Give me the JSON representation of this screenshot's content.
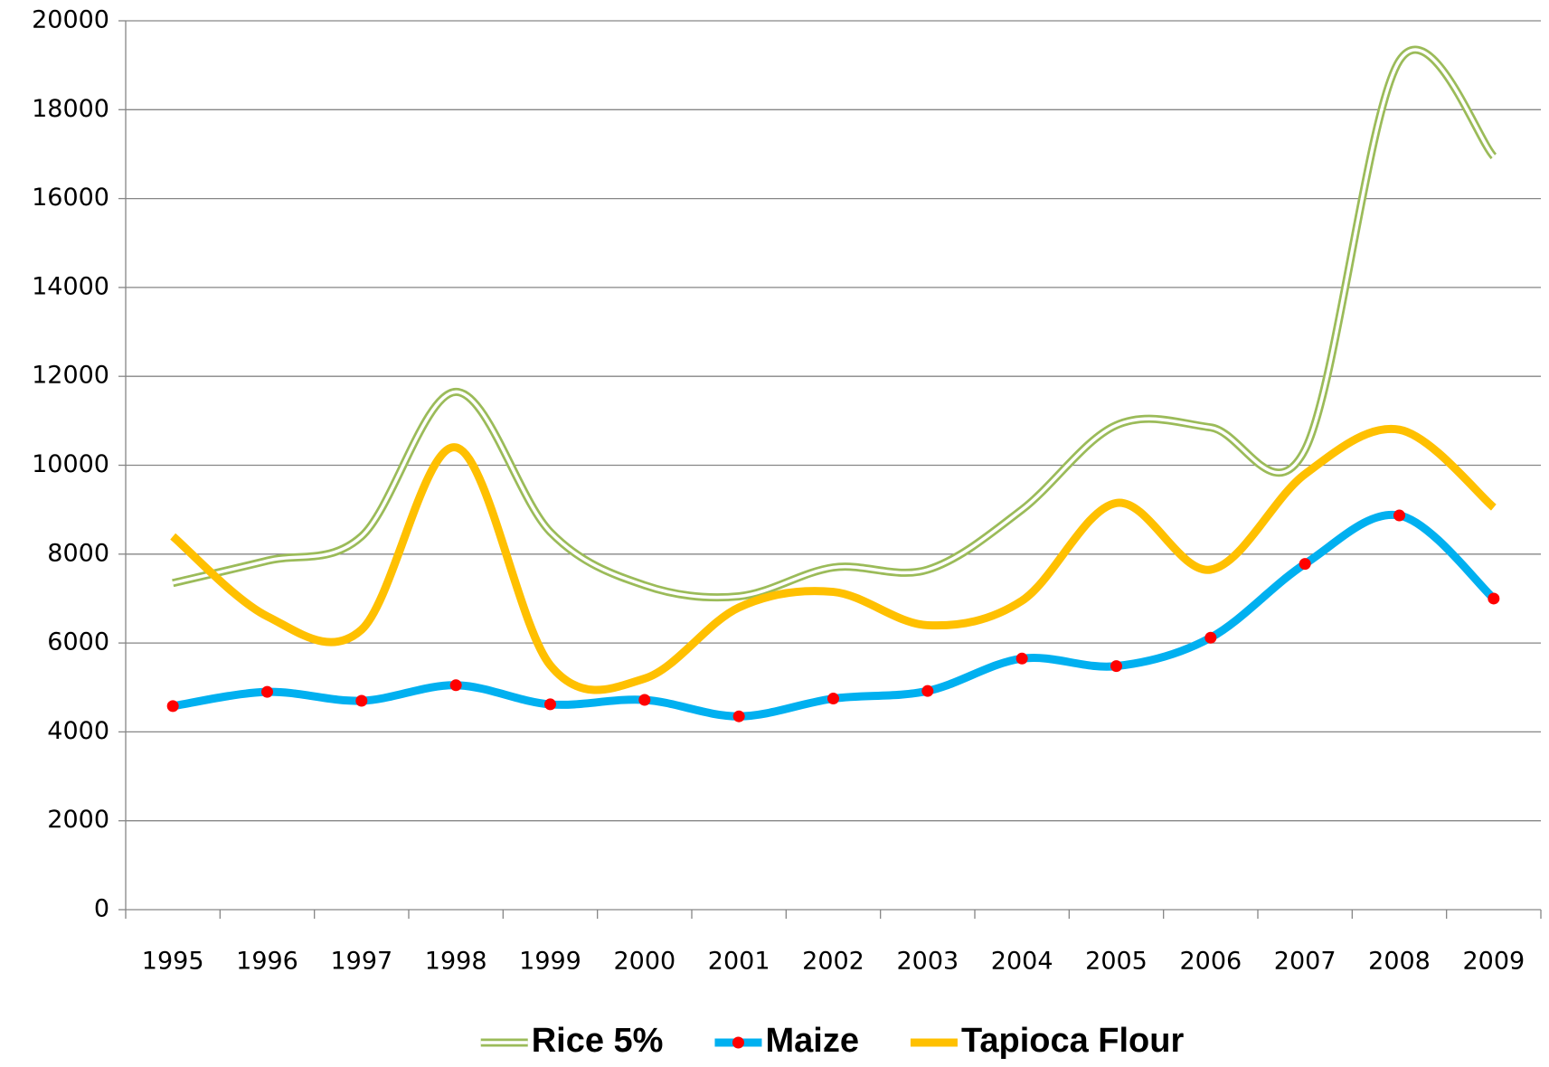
{
  "chart_data": {
    "type": "line",
    "categories": [
      "1995",
      "1996",
      "1997",
      "1998",
      "1999",
      "2000",
      "2001",
      "2002",
      "2003",
      "2004",
      "2005",
      "2006",
      "2007",
      "2008",
      "2009"
    ],
    "series": [
      {
        "name": "Rice 5%",
        "color": "#9bbb59",
        "values": [
          7350,
          7850,
          8400,
          11650,
          8500,
          7300,
          7050,
          7700,
          7650,
          9000,
          10900,
          10850,
          10350,
          19100,
          16950
        ]
      },
      {
        "name": "Maize",
        "color": "#00b0f0",
        "marker_color": "#ff0000",
        "values": [
          4580,
          4900,
          4700,
          5050,
          4620,
          4720,
          4350,
          4750,
          4920,
          5650,
          5480,
          6120,
          7780,
          8870,
          7000
        ]
      },
      {
        "name": "Tapioca Flour",
        "color": "#ffc000",
        "values": [
          8400,
          6600,
          6300,
          10400,
          5500,
          5200,
          6800,
          7150,
          6400,
          6950,
          9150,
          7650,
          9800,
          10800,
          9050
        ]
      }
    ],
    "ylim": [
      0,
      20000
    ],
    "yticks": [
      0,
      2000,
      4000,
      6000,
      8000,
      10000,
      12000,
      14000,
      16000,
      18000,
      20000
    ],
    "grid": true,
    "smooth": true,
    "legend": "bottom"
  }
}
